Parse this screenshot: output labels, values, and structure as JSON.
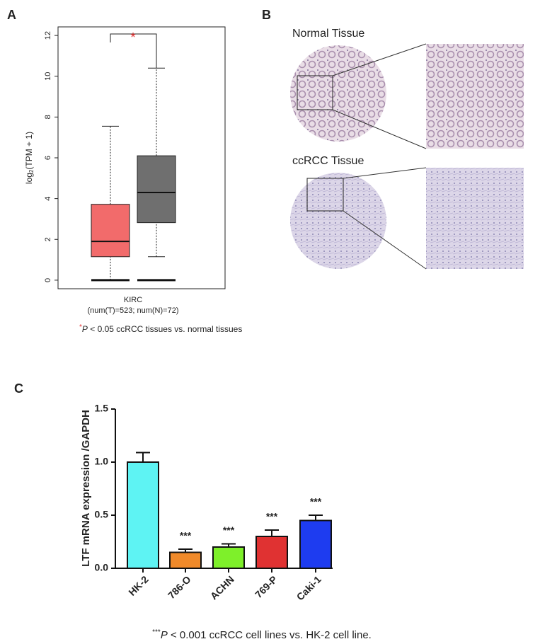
{
  "panels": {
    "a": "A",
    "b": "B",
    "c": "C"
  },
  "tissue_images": {
    "normal": "Normal Tissue",
    "tumor": "ccRCC Tissue"
  },
  "chart_data": [
    {
      "type": "box",
      "y_label_parts": [
        "log",
        "2",
        "(TPM + 1)"
      ],
      "category": "KIRC",
      "category_note": "(num(T)=523; num(N)=72)",
      "significance": "*",
      "footnote_mark": "*",
      "footnote_p": "P",
      "footnote": " < 0.05 ccRCC tissues vs. normal tissues",
      "ylim": [
        -0.42,
        12.42
      ],
      "yticks": [
        0,
        2,
        4,
        6,
        8,
        10,
        12
      ],
      "boxes": [
        {
          "color": "#f26b6b",
          "min": 0,
          "whisker_low": 0,
          "q1": 1.15,
          "median": 1.9,
          "q3": 3.72,
          "whisker_high": 7.55
        },
        {
          "color": "#6f6f6f",
          "min": 0,
          "whisker_low": 1.15,
          "q1": 2.82,
          "median": 4.3,
          "q3": 6.1,
          "whisker_high": 10.4
        }
      ]
    },
    {
      "type": "bar",
      "y_label": "LTF mRNA expression /GAPDH",
      "categories": [
        "HK-2",
        "786-O",
        "ACHN",
        "769-P",
        "Caki-1"
      ],
      "values": [
        1.0,
        0.15,
        0.2,
        0.3,
        0.45
      ],
      "errors": [
        0.09,
        0.03,
        0.03,
        0.06,
        0.05
      ],
      "colors": [
        "#5ef3f3",
        "#f08a2a",
        "#7ef02a",
        "#e03232",
        "#1e3cf0"
      ],
      "significance": [
        null,
        "***",
        "***",
        "***",
        "***"
      ],
      "footnote_mark": "***",
      "footnote_p": "P",
      "footnote": " < 0.001 ccRCC cell lines vs. HK-2 cell line.",
      "ylim": [
        0,
        1.5
      ],
      "yticks": [
        {
          "value": 0,
          "label": "0.0"
        },
        0.5,
        {
          "value": 1,
          "label": "1.0"
        },
        1.5
      ]
    }
  ]
}
